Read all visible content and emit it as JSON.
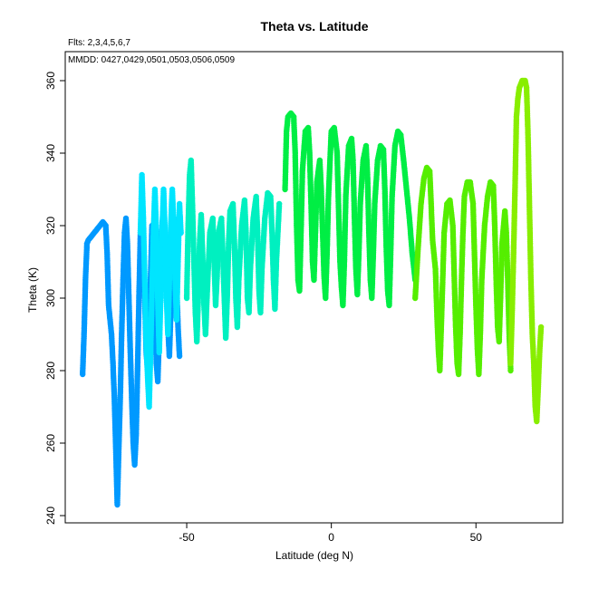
{
  "chart_data": {
    "type": "scatter",
    "title": "Theta vs. Latitude",
    "annotations": {
      "flights": "Flts: 2,3,4,5,6,7",
      "dates": "MMDD: 0427,0429,0501,0503,0506,0509"
    },
    "xlabel": "Latitude (deg N)",
    "ylabel": "Theta (K)",
    "xlim": [
      -92,
      80
    ],
    "ylim": [
      238,
      368
    ],
    "x_ticks": [
      -50,
      0,
      50
    ],
    "x_tick_labels": [
      "-50",
      "0",
      "50"
    ],
    "y_ticks": [
      240,
      260,
      280,
      300,
      320,
      340,
      360
    ],
    "y_tick_labels": [
      "240",
      "260",
      "280",
      "300",
      "320",
      "340",
      "360"
    ],
    "grid": false,
    "color_encoding": "point color shifts from blue (southern latitudes) through cyan to green and yellow-green (northern latitudes)",
    "series": [
      {
        "color": "#0099ff",
        "points": [
          [
            -86,
            279
          ],
          [
            -85.5,
            290
          ],
          [
            -85,
            305
          ],
          [
            -84.5,
            315
          ],
          [
            -84,
            316
          ],
          [
            -82,
            318
          ],
          [
            -80,
            320
          ],
          [
            -79,
            321
          ],
          [
            -78,
            320
          ],
          [
            -77.5,
            312
          ],
          [
            -77,
            298
          ],
          [
            -76,
            290
          ],
          [
            -75.5,
            282
          ],
          [
            -75,
            272
          ],
          [
            -74.5,
            258
          ],
          [
            -74,
            243
          ],
          [
            -73.5,
            258
          ],
          [
            -73,
            272
          ],
          [
            -72.5,
            290
          ],
          [
            -72,
            305
          ],
          [
            -71.5,
            318
          ],
          [
            -71,
            322
          ],
          [
            -70.5,
            315
          ],
          [
            -70,
            300
          ],
          [
            -69.5,
            285
          ],
          [
            -69,
            272
          ],
          [
            -68.5,
            260
          ],
          [
            -68,
            254
          ],
          [
            -67.5,
            262
          ],
          [
            -67,
            280
          ],
          [
            -66.5,
            300
          ],
          [
            -66,
            318
          ],
          [
            -65.5,
            325
          ],
          [
            -65,
            315
          ],
          [
            -64.5,
            300
          ],
          [
            -64,
            285
          ],
          [
            -63.5,
            280
          ],
          [
            -63,
            290
          ],
          [
            -62.5,
            305
          ],
          [
            -62,
            320
          ],
          [
            -61.5,
            312
          ],
          [
            -61,
            298
          ],
          [
            -60.5,
            282
          ],
          [
            -60,
            277
          ],
          [
            -59.5,
            290
          ],
          [
            -59,
            305
          ],
          [
            -58.5,
            320
          ],
          [
            -58,
            326
          ],
          [
            -57.5,
            318
          ],
          [
            -57,
            304
          ],
          [
            -56.5,
            292
          ],
          [
            -56,
            284
          ],
          [
            -55.5,
            296
          ],
          [
            -55,
            310
          ],
          [
            -54.5,
            322
          ],
          [
            -54,
            318
          ],
          [
            -53.5,
            304
          ],
          [
            -53,
            292
          ],
          [
            -52.5,
            284
          ]
        ]
      },
      {
        "color": "#00e5ff",
        "points": [
          [
            -66,
            318
          ],
          [
            -65.5,
            334
          ],
          [
            -65,
            322
          ],
          [
            -64.5,
            305
          ],
          [
            -64,
            288
          ],
          [
            -63.5,
            278
          ],
          [
            -63,
            270
          ],
          [
            -62.5,
            285
          ],
          [
            -62,
            302
          ],
          [
            -61.5,
            318
          ],
          [
            -61,
            330
          ],
          [
            -60.5,
            318
          ],
          [
            -60,
            300
          ],
          [
            -59.5,
            285
          ],
          [
            -59,
            300
          ],
          [
            -58.5,
            318
          ],
          [
            -58,
            330
          ],
          [
            -57.5,
            318
          ],
          [
            -57,
            300
          ],
          [
            -56.5,
            290
          ],
          [
            -56,
            305
          ],
          [
            -55.5,
            320
          ],
          [
            -55,
            330
          ],
          [
            -54.5,
            320
          ],
          [
            -54,
            305
          ],
          [
            -53.5,
            294
          ],
          [
            -53,
            310
          ],
          [
            -52.5,
            326
          ],
          [
            -52,
            318
          ]
        ]
      },
      {
        "color": "#00f0c0",
        "points": [
          [
            -50,
            300
          ],
          [
            -49.5,
            320
          ],
          [
            -49,
            334
          ],
          [
            -48.5,
            338
          ],
          [
            -48,
            325
          ],
          [
            -47.5,
            310
          ],
          [
            -47,
            296
          ],
          [
            -46.5,
            288
          ],
          [
            -46,
            300
          ],
          [
            -45.5,
            316
          ],
          [
            -45,
            323
          ],
          [
            -44.5,
            312
          ],
          [
            -44,
            298
          ],
          [
            -43.5,
            290
          ],
          [
            -43,
            300
          ],
          [
            -42,
            318
          ],
          [
            -41,
            322
          ],
          [
            -40.5,
            310
          ],
          [
            -40,
            298
          ],
          [
            -39.5,
            306
          ],
          [
            -39,
            318
          ],
          [
            -38,
            322
          ],
          [
            -37.5,
            312
          ],
          [
            -37,
            300
          ],
          [
            -36.5,
            289
          ],
          [
            -36,
            300
          ],
          [
            -35.5,
            315
          ],
          [
            -35,
            324
          ],
          [
            -34,
            326
          ],
          [
            -33.5,
            315
          ],
          [
            -33,
            300
          ],
          [
            -32.5,
            292
          ],
          [
            -32,
            305
          ],
          [
            -31,
            320
          ],
          [
            -30,
            327
          ],
          [
            -29.5,
            318
          ],
          [
            -29,
            300
          ],
          [
            -28.5,
            296
          ],
          [
            -28,
            308
          ],
          [
            -27,
            322
          ],
          [
            -26,
            328
          ],
          [
            -25.5,
            318
          ],
          [
            -25,
            302
          ],
          [
            -24.5,
            296
          ],
          [
            -24,
            308
          ],
          [
            -23,
            322
          ],
          [
            -22,
            329
          ],
          [
            -21,
            328
          ],
          [
            -20.5,
            318
          ],
          [
            -20,
            305
          ],
          [
            -19.5,
            297
          ],
          [
            -19,
            310
          ],
          [
            -18,
            326
          ]
        ]
      },
      {
        "color": "#00ee44",
        "points": [
          [
            -16,
            330
          ],
          [
            -15.5,
            346
          ],
          [
            -15,
            350
          ],
          [
            -14,
            351
          ],
          [
            -13,
            350
          ],
          [
            -12.5,
            340
          ],
          [
            -12,
            320
          ],
          [
            -11.5,
            305
          ],
          [
            -11,
            302
          ],
          [
            -10.5,
            318
          ],
          [
            -10,
            335
          ],
          [
            -9,
            346
          ],
          [
            -8,
            347
          ],
          [
            -7.5,
            340
          ],
          [
            -7,
            326
          ],
          [
            -6.5,
            310
          ],
          [
            -6,
            305
          ],
          [
            -5.5,
            318
          ],
          [
            -5,
            332
          ],
          [
            -4,
            338
          ],
          [
            -3.5,
            330
          ],
          [
            -3,
            318
          ],
          [
            -2.5,
            306
          ],
          [
            -2,
            300
          ],
          [
            -1.5,
            312
          ],
          [
            -1,
            328
          ],
          [
            0,
            346
          ],
          [
            1,
            347
          ],
          [
            2,
            340
          ],
          [
            2.5,
            325
          ],
          [
            3,
            310
          ],
          [
            3.5,
            303
          ],
          [
            4,
            298
          ],
          [
            4.5,
            310
          ],
          [
            5,
            328
          ],
          [
            6,
            342
          ],
          [
            7,
            344
          ],
          [
            7.5,
            338
          ],
          [
            8,
            322
          ],
          [
            8.5,
            308
          ],
          [
            9,
            301
          ],
          [
            9.5,
            312
          ],
          [
            10,
            326
          ],
          [
            11,
            338
          ],
          [
            12,
            342
          ],
          [
            12.5,
            334
          ],
          [
            13,
            318
          ],
          [
            13.5,
            305
          ],
          [
            14,
            300
          ],
          [
            14.5,
            312
          ],
          [
            15,
            326
          ],
          [
            16,
            338
          ],
          [
            17,
            342
          ],
          [
            18,
            341
          ],
          [
            18.5,
            330
          ],
          [
            19,
            314
          ],
          [
            19.5,
            302
          ],
          [
            20,
            298
          ],
          [
            20.5,
            312
          ],
          [
            21,
            328
          ],
          [
            22,
            342
          ],
          [
            23,
            346
          ],
          [
            24,
            345
          ],
          [
            25,
            338
          ],
          [
            26,
            330
          ],
          [
            27,
            322
          ],
          [
            28,
            312
          ],
          [
            29,
            305
          ]
        ]
      },
      {
        "color": "#55ee00",
        "points": [
          [
            29,
            300
          ],
          [
            30,
            314
          ],
          [
            31,
            326
          ],
          [
            32,
            333
          ],
          [
            33,
            336
          ],
          [
            34,
            335
          ],
          [
            34.5,
            326
          ],
          [
            35,
            316
          ],
          [
            36,
            308
          ],
          [
            36.5,
            296
          ],
          [
            37,
            286
          ],
          [
            37.5,
            280
          ],
          [
            38,
            292
          ],
          [
            38.5,
            305
          ],
          [
            39,
            318
          ],
          [
            40,
            326
          ],
          [
            41,
            327
          ],
          [
            42,
            320
          ],
          [
            42.5,
            306
          ],
          [
            43,
            292
          ],
          [
            43.5,
            282
          ],
          [
            44,
            279
          ],
          [
            44.5,
            290
          ],
          [
            45,
            305
          ],
          [
            45.5,
            318
          ],
          [
            46,
            328
          ],
          [
            47,
            332
          ],
          [
            48,
            332
          ],
          [
            49,
            326
          ],
          [
            49.5,
            312
          ],
          [
            50,
            298
          ],
          [
            50.5,
            286
          ],
          [
            51,
            279
          ],
          [
            51.5,
            290
          ],
          [
            52,
            305
          ],
          [
            53,
            320
          ],
          [
            54,
            328
          ],
          [
            55,
            332
          ],
          [
            56,
            331
          ],
          [
            56.5,
            320
          ],
          [
            57,
            305
          ],
          [
            57.5,
            292
          ],
          [
            58,
            288
          ],
          [
            58.5,
            300
          ],
          [
            59,
            315
          ],
          [
            60,
            324
          ],
          [
            60.5,
            318
          ],
          [
            61,
            305
          ],
          [
            61.5,
            290
          ],
          [
            62,
            280
          ]
        ]
      },
      {
        "color": "#88ee00",
        "points": [
          [
            62,
            282
          ],
          [
            62.5,
            296
          ],
          [
            63,
            312
          ],
          [
            63.5,
            330
          ],
          [
            64,
            350
          ],
          [
            64.5,
            355
          ],
          [
            65,
            358
          ],
          [
            66,
            360
          ],
          [
            67,
            360
          ],
          [
            67.5,
            358
          ],
          [
            68,
            345
          ],
          [
            68.5,
            325
          ],
          [
            69,
            305
          ],
          [
            69.5,
            290
          ],
          [
            70,
            282
          ],
          [
            70.5,
            270
          ],
          [
            71,
            266
          ],
          [
            71.5,
            275
          ],
          [
            72,
            285
          ],
          [
            72.5,
            292
          ]
        ]
      }
    ]
  }
}
